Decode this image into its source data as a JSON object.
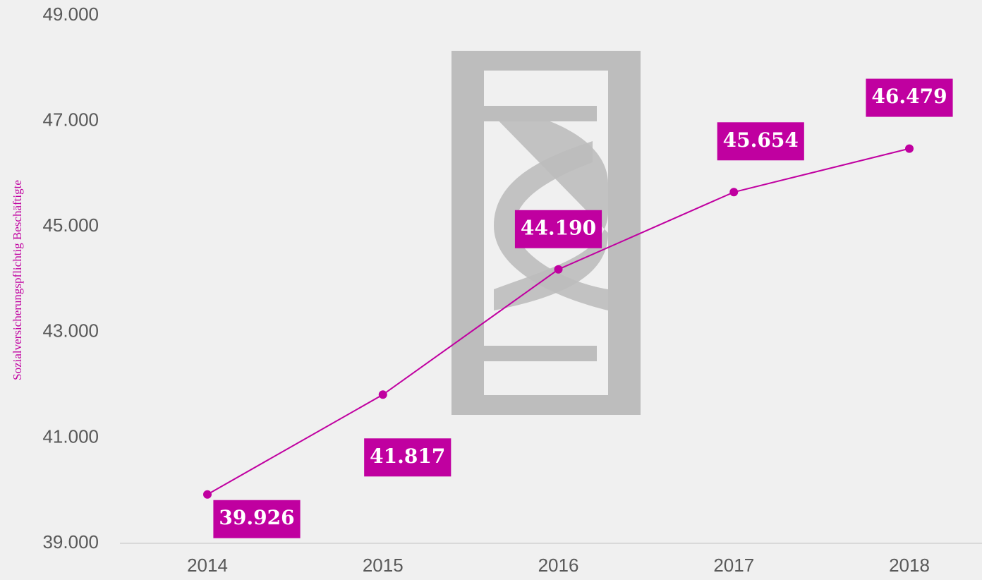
{
  "chart_data": {
    "type": "line",
    "y_axis_label": "Sozialversicherungspflichtig Beschäftigte",
    "categories": [
      "2014",
      "2015",
      "2016",
      "2017",
      "2018"
    ],
    "values": [
      39926,
      41817,
      44190,
      45654,
      46479
    ],
    "value_labels": [
      "39.926",
      "41.817",
      "44.190",
      "45.654",
      "46.479"
    ],
    "color": "#c000a0",
    "ylim": [
      39000,
      49000
    ],
    "yticks": [
      {
        "value": 39000,
        "label": "39.000"
      },
      {
        "value": 41000,
        "label": "41.000"
      },
      {
        "value": 43000,
        "label": "43.000"
      },
      {
        "value": 45000,
        "label": "45.000"
      },
      {
        "value": 47000,
        "label": "47.000"
      },
      {
        "value": 49000,
        "label": "49.000"
      }
    ],
    "grid": false
  }
}
